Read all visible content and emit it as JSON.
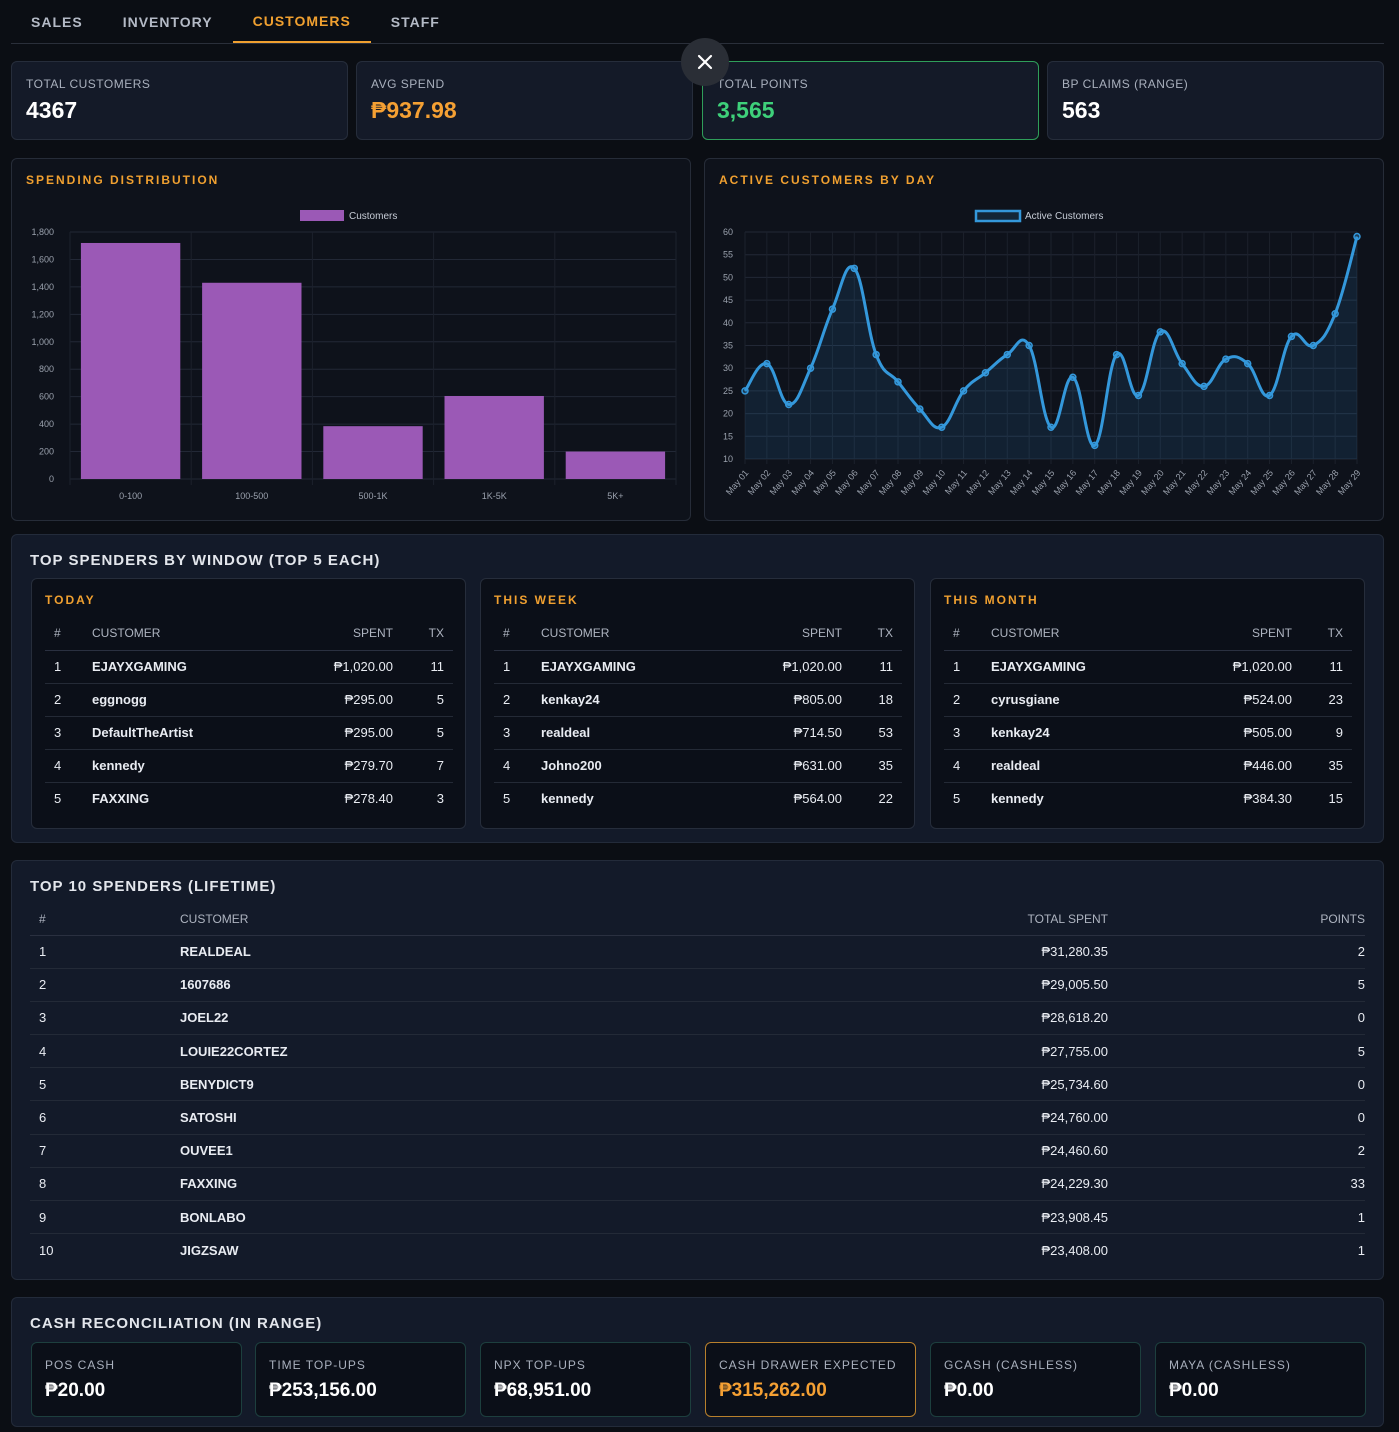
{
  "tabs": [
    {
      "label": "SALES",
      "active": false
    },
    {
      "label": "INVENTORY",
      "active": false
    },
    {
      "label": "CUSTOMERS",
      "active": true
    },
    {
      "label": "STAFF",
      "active": false
    }
  ],
  "stats": {
    "total_customers": {
      "label": "TOTAL CUSTOMERS",
      "value": "4367"
    },
    "avg_spend": {
      "label": "AVG SPEND",
      "value": "₱937.98"
    },
    "total_points": {
      "label": "TOTAL POINTS",
      "value": "3,565"
    },
    "bp_claims": {
      "label": "BP CLAIMS (RANGE)",
      "value": "563"
    }
  },
  "colors": {
    "accent": "#f0a030",
    "money": "#3ed07a",
    "bar": "#9b59b6",
    "line": "#3498db"
  },
  "spending": {
    "title": "SPENDING DISTRIBUTION"
  },
  "active": {
    "title": "ACTIVE CUSTOMERS BY DAY"
  },
  "chart_data": [
    {
      "type": "bar",
      "categories": [
        "0-100",
        "100-500",
        "500-1K",
        "1K-5K",
        "5K+"
      ],
      "series": [
        {
          "name": "Customers",
          "values": [
            1720,
            1430,
            385,
            605,
            200
          ]
        }
      ],
      "ylim": [
        0,
        1800
      ],
      "yticks": [
        "0",
        "200",
        "400",
        "600",
        "800",
        "1,000",
        "1,200",
        "1,400",
        "1,600",
        "1,800"
      ],
      "legend": "top"
    },
    {
      "type": "line",
      "x": [
        "May 01",
        "May 02",
        "May 03",
        "May 04",
        "May 05",
        "May 06",
        "May 07",
        "May 08",
        "May 09",
        "May 10",
        "May 11",
        "May 12",
        "May 13",
        "May 14",
        "May 15",
        "May 16",
        "May 17",
        "May 18",
        "May 19",
        "May 20",
        "May 21",
        "May 22",
        "May 23",
        "May 24",
        "May 25",
        "May 26",
        "May 27",
        "May 28",
        "May 29"
      ],
      "series": [
        {
          "name": "Active Customers",
          "values": [
            25,
            31,
            22,
            30,
            43,
            52,
            33,
            27,
            21,
            17,
            25,
            29,
            33,
            35,
            17,
            28,
            13,
            33,
            24,
            38,
            31,
            26,
            32,
            31,
            24,
            37,
            35,
            42,
            59
          ]
        }
      ],
      "ylim": [
        10,
        60
      ],
      "yticks": [
        "10",
        "15",
        "20",
        "25",
        "30",
        "35",
        "40",
        "45",
        "50",
        "55",
        "60"
      ],
      "legend": "top"
    }
  ],
  "windows": {
    "title": "TOP SPENDERS BY WINDOW (TOP 5 EACH)",
    "headers": {
      "rank": "#",
      "customer": "CUSTOMER",
      "spent": "SPENT",
      "tx": "TX"
    },
    "panels": [
      {
        "title": "TODAY",
        "rows": [
          {
            "rank": "1",
            "name": "EJAYXGAMING",
            "spent": "₱1,020.00",
            "tx": "11"
          },
          {
            "rank": "2",
            "name": "eggnogg",
            "spent": "₱295.00",
            "tx": "5"
          },
          {
            "rank": "3",
            "name": "DefaultTheArtist",
            "spent": "₱295.00",
            "tx": "5"
          },
          {
            "rank": "4",
            "name": "kennedy",
            "spent": "₱279.70",
            "tx": "7"
          },
          {
            "rank": "5",
            "name": "FAXXING",
            "spent": "₱278.40",
            "tx": "3"
          }
        ]
      },
      {
        "title": "THIS WEEK",
        "rows": [
          {
            "rank": "1",
            "name": "EJAYXGAMING",
            "spent": "₱1,020.00",
            "tx": "11"
          },
          {
            "rank": "2",
            "name": "kenkay24",
            "spent": "₱805.00",
            "tx": "18"
          },
          {
            "rank": "3",
            "name": "realdeal",
            "spent": "₱714.50",
            "tx": "53"
          },
          {
            "rank": "4",
            "name": "Johno200",
            "spent": "₱631.00",
            "tx": "35"
          },
          {
            "rank": "5",
            "name": "kennedy",
            "spent": "₱564.00",
            "tx": "22"
          }
        ]
      },
      {
        "title": "THIS MONTH",
        "rows": [
          {
            "rank": "1",
            "name": "EJAYXGAMING",
            "spent": "₱1,020.00",
            "tx": "11"
          },
          {
            "rank": "2",
            "name": "cyrusgiane",
            "spent": "₱524.00",
            "tx": "23"
          },
          {
            "rank": "3",
            "name": "kenkay24",
            "spent": "₱505.00",
            "tx": "9"
          },
          {
            "rank": "4",
            "name": "realdeal",
            "spent": "₱446.00",
            "tx": "35"
          },
          {
            "rank": "5",
            "name": "kennedy",
            "spent": "₱384.30",
            "tx": "15"
          }
        ]
      }
    ]
  },
  "lifetime": {
    "title": "TOP 10 SPENDERS (LIFETIME)",
    "headers": {
      "rank": "#",
      "customer": "CUSTOMER",
      "total": "TOTAL SPENT",
      "points": "POINTS"
    },
    "rows": [
      {
        "rank": "1",
        "name": "REALDEAL",
        "total": "₱31,280.35",
        "points": "2"
      },
      {
        "rank": "2",
        "name": "1607686",
        "total": "₱29,005.50",
        "points": "5"
      },
      {
        "rank": "3",
        "name": "JOEL22",
        "total": "₱28,618.20",
        "points": "0"
      },
      {
        "rank": "4",
        "name": "LOUIE22CORTEZ",
        "total": "₱27,755.00",
        "points": "5"
      },
      {
        "rank": "5",
        "name": "BENYDICT9",
        "total": "₱25,734.60",
        "points": "0"
      },
      {
        "rank": "6",
        "name": "SATOSHI",
        "total": "₱24,760.00",
        "points": "0"
      },
      {
        "rank": "7",
        "name": "OUVEE1",
        "total": "₱24,460.60",
        "points": "2"
      },
      {
        "rank": "8",
        "name": "FAXXING",
        "total": "₱24,229.30",
        "points": "33"
      },
      {
        "rank": "9",
        "name": "BONLABO",
        "total": "₱23,908.45",
        "points": "1"
      },
      {
        "rank": "10",
        "name": "JIGZSAW",
        "total": "₱23,408.00",
        "points": "1"
      }
    ]
  },
  "cash": {
    "title": "CASH RECONCILIATION (IN RANGE)",
    "cards": [
      {
        "label": "POS CASH",
        "value": "₱20.00"
      },
      {
        "label": "TIME TOP-UPS",
        "value": "₱253,156.00"
      },
      {
        "label": "NPX TOP-UPS",
        "value": "₱68,951.00"
      },
      {
        "label": "CASH DRAWER EXPECTED",
        "value": "₱315,262.00"
      },
      {
        "label": "GCASH (CASHLESS)",
        "value": "₱0.00"
      },
      {
        "label": "MAYA (CASHLESS)",
        "value": "₱0.00"
      }
    ]
  },
  "icons": {
    "close": "close-icon"
  }
}
